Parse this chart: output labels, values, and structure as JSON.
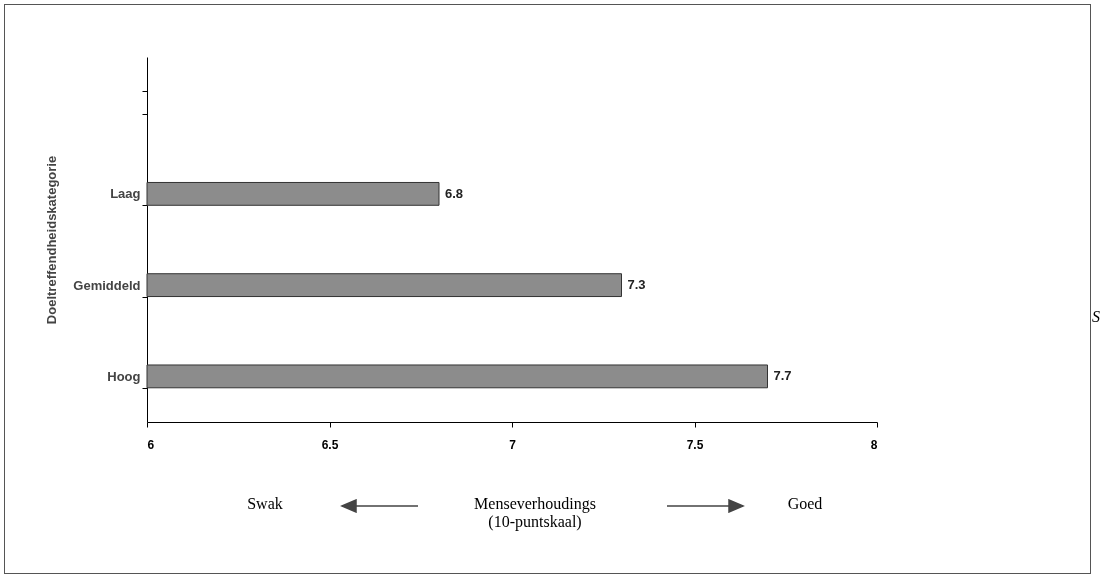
{
  "chart_data": {
    "type": "bar",
    "orientation": "horizontal",
    "ylabel": "Doeltreffendheidskategorie",
    "xlabel": "Menseverhoudings\n(10-puntskaal)",
    "categories": [
      null,
      "Laag",
      "Gemiddeld",
      "Hoog"
    ],
    "values": [
      null,
      6.8,
      7.3,
      7.7
    ],
    "color": "#8c8c8c",
    "xlim": [
      6,
      8
    ],
    "xticks": [
      6,
      6.5,
      7,
      7.5,
      8
    ],
    "data_labels": true,
    "grid": false,
    "legend": false,
    "annotations": [
      "Swak",
      "Goed",
      "S"
    ]
  }
}
